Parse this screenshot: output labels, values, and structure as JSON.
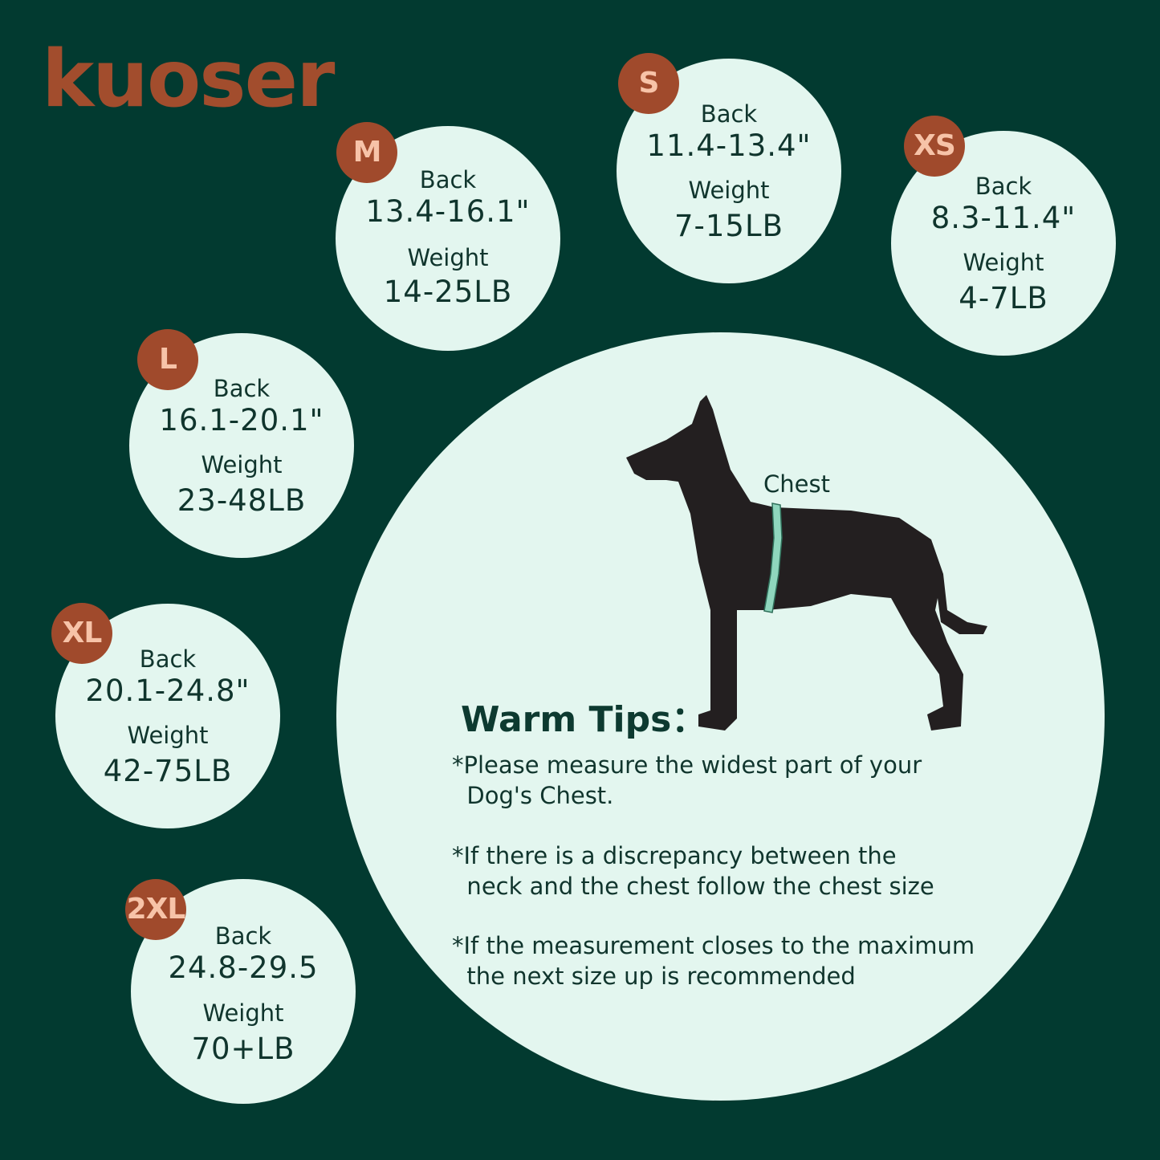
{
  "brand": {
    "logo_text": "kuoser"
  },
  "colors": {
    "background": "#023a30",
    "circle": "#e3f6ef",
    "badge": "#a04a2c",
    "badge_text": "#f7c3a8",
    "logo": "#a24d2d",
    "dog": "#231f20",
    "tape": "#8fd6bd"
  },
  "sizes": [
    {
      "size": "M",
      "back_label": "Back",
      "back": "13.4-16.1\"",
      "weight_label": "Weight",
      "weight": "14-25LB"
    },
    {
      "size": "S",
      "back_label": "Back",
      "back": "11.4-13.4\"",
      "weight_label": "Weight",
      "weight": "7-15LB"
    },
    {
      "size": "XS",
      "back_label": "Back",
      "back": "8.3-11.4\"",
      "weight_label": "Weight",
      "weight": "4-7LB"
    },
    {
      "size": "L",
      "back_label": "Back",
      "back": "16.1-20.1\"",
      "weight_label": "Weight",
      "weight": "23-48LB"
    },
    {
      "size": "XL",
      "back_label": "Back",
      "back": "20.1-24.8\"",
      "weight_label": "Weight",
      "weight": "42-75LB"
    },
    {
      "size": "2XL",
      "back_label": "Back",
      "back": "24.8-29.5",
      "weight_label": "Weight",
      "weight": "70+LB"
    }
  ],
  "diagram": {
    "chest_label": "Chest",
    "icon": "dog-silhouette-icon"
  },
  "tips": {
    "title": "Warm Tips：",
    "items": [
      "*Please measure the widest part of your\n  Dog's Chest.",
      "*If there is a discrepancy between the\n  neck and the chest follow the chest size",
      "*If the measurement closes to the maximum\n  the next size up is recommended"
    ]
  }
}
